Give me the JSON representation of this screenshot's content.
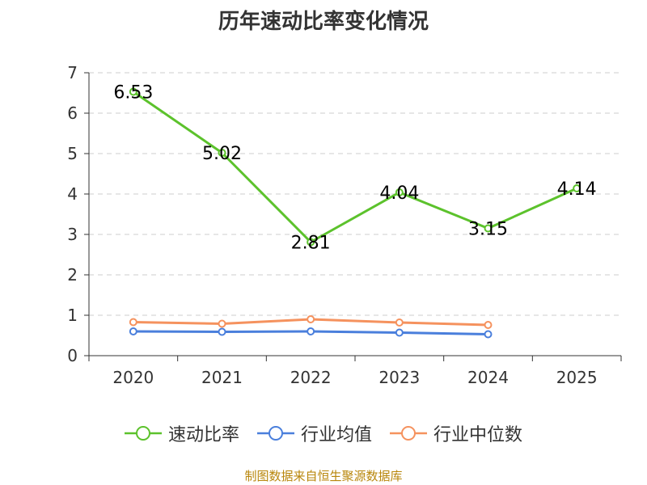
{
  "chart_data": {
    "type": "line",
    "title": "历年速动比率变化情况",
    "categories": [
      "2020",
      "2021",
      "2022",
      "2023",
      "2024",
      "2025"
    ],
    "ylim": [
      0,
      7
    ],
    "yticks": [
      0,
      1,
      2,
      3,
      4,
      5,
      6,
      7
    ],
    "grid": true,
    "legend_position": "bottom",
    "series": [
      {
        "name": "速动比率",
        "color": "#5cc22c",
        "values": [
          6.53,
          5.02,
          2.81,
          4.04,
          3.15,
          4.14
        ],
        "labels": [
          "6.53",
          "5.02",
          "2.81",
          "4.04",
          "3.15",
          "4.14"
        ]
      },
      {
        "name": "行业均值",
        "color": "#4a7fdc",
        "values": [
          0.6,
          0.59,
          0.6,
          0.57,
          0.53,
          null
        ]
      },
      {
        "name": "行业中位数",
        "color": "#f5925e",
        "values": [
          0.83,
          0.79,
          0.9,
          0.82,
          0.76,
          null
        ]
      }
    ]
  },
  "source": "制图数据来自恒生聚源数据库"
}
